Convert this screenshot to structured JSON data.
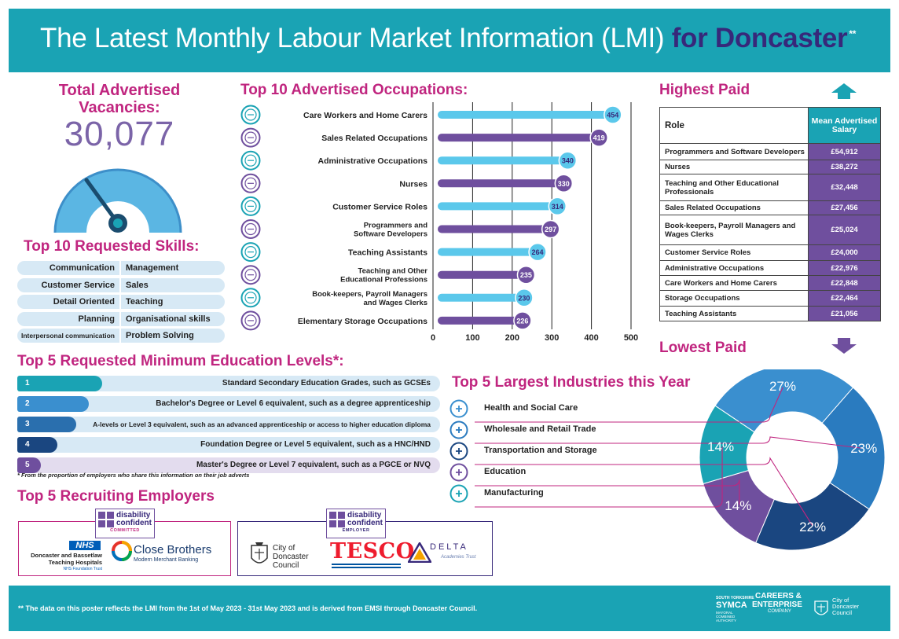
{
  "header": {
    "title_main": "The Latest Monthly Labour Market Information (LMI)",
    "title_highlight": "for Doncaster",
    "title_marker": "**"
  },
  "vacancies": {
    "title": "Total Advertised Vacancies:",
    "value": "30,077",
    "gauge_level": 0.3
  },
  "skills": {
    "title": "Top 10 Requested Skills:",
    "rows": [
      {
        "left": "Communication",
        "right": "Management"
      },
      {
        "left": "Customer Service",
        "right": "Sales"
      },
      {
        "left": "Detail Oriented",
        "right": "Teaching"
      },
      {
        "left": "Planning",
        "right": "Organisational skills"
      },
      {
        "left": "Interpersonal communication",
        "right": "Problem Solving"
      }
    ]
  },
  "occupations": {
    "title": "Top 10 Advertised Occupations:"
  },
  "chart_data": {
    "type": "bar",
    "orientation": "horizontal",
    "title": "Top 10 Advertised Occupations:",
    "categories": [
      "Care Workers and Home Carers",
      "Sales Related Occupations",
      "Administrative Occupations",
      "Nurses",
      "Customer Service Roles",
      "Programmers and|Software Developers",
      "Teaching Assistants",
      "Teaching and Other|Educational Professions",
      "Book-keepers, Payroll Managers|and Wages Clerks",
      "Elementary Storage Occupations"
    ],
    "values": [
      454,
      419,
      340,
      330,
      314,
      297,
      264,
      235,
      230,
      226
    ],
    "xlim": [
      0,
      500
    ],
    "xticks": [
      "0",
      "100",
      "200",
      "300",
      "400",
      "500"
    ],
    "grid": true,
    "icons": [
      "care-icon",
      "chart-icon",
      "envelope-icon",
      "nurse-icon",
      "headset-icon",
      "laptop-icon",
      "teacher-icon",
      "graduation-cap-icon",
      "ledger-icon",
      "warehouse-icon"
    ],
    "colors": [
      "#5bc8eb",
      "#6f4f9e"
    ]
  },
  "highest_paid": {
    "title": "Highest Paid",
    "lowest_title": "Lowest Paid",
    "col_role": "Role",
    "col_salary": "Mean Advertised Salary",
    "rows": [
      {
        "role": "Programmers and Software Developers",
        "salary": "£54,912"
      },
      {
        "role": "Nurses",
        "salary": "£38,272"
      },
      {
        "role": "Teaching and Other Educational Professionals",
        "salary": "£32,448"
      },
      {
        "role": "Sales Related Occupations",
        "salary": "£27,456"
      },
      {
        "role": "Book-keepers, Payroll Managers and Wages Clerks",
        "salary": "£25,024"
      },
      {
        "role": "Customer Service Roles",
        "salary": "£24,000"
      },
      {
        "role": "Administrative Occupations",
        "salary": "£22,976"
      },
      {
        "role": "Care Workers and Home Carers",
        "salary": "£22,848"
      },
      {
        "role": "Storage Occupations",
        "salary": "£22,464"
      },
      {
        "role": "Teaching Assistants",
        "salary": "£21,056"
      }
    ]
  },
  "education": {
    "title": "Top 5 Requested Minimum Education Levels*:",
    "rows": [
      {
        "num": "1",
        "label": "Standard Secondary Education Grades, such as GCSEs",
        "level": 0.2,
        "color": "#1aa3b4"
      },
      {
        "num": "2",
        "label": "Bachelor's Degree or Level 6 equivalent, such as a degree apprenticeship",
        "level": 0.17,
        "color": "#3a8fcf"
      },
      {
        "num": "3",
        "label": "A-levels or Level 3 equivalent, such as an advanced apprenticeship or access to higher education diploma",
        "level": 0.14,
        "color": "#2a6fae"
      },
      {
        "num": "4",
        "label": "Foundation Degree or Level 5 equivalent, such as a HNC/HND",
        "level": 0.095,
        "color": "#1a4680"
      },
      {
        "num": "5",
        "label": "Master's Degree or Level 7 equivalent, such as a PGCE or NVQ",
        "level": 0.055,
        "color": "#6f4f9e"
      }
    ],
    "note": "* From the proportion of employers who share this information on their job adverts"
  },
  "employers": {
    "title": "Top 5 Recruiting Employers",
    "badge_word1": "disability",
    "badge_word2": "confident",
    "badge1_level": "COMMITTED",
    "badge2_level": "EMPLOYER",
    "nhs": "NHS",
    "nhs_line1": "Doncaster and Bassetlaw",
    "nhs_line2": "Teaching Hospitals",
    "nhs_line3": "NHS Foundation Trust",
    "close_brothers": "Close Brothers",
    "close_brothers_sub": "Modern Merchant Banking",
    "council_line1": "City of",
    "council_line2": "Doncaster",
    "council_line3": "Council",
    "tesco": "TESCO",
    "delta": "DELTA",
    "delta_sub": "Academies Trust"
  },
  "industries": {
    "title": "Top 5 Largest Industries this Year",
    "items": [
      {
        "label": "Health and Social Care",
        "percent": 27,
        "color": "#3a8fcf",
        "icon": "plus-icon"
      },
      {
        "label": "Wholesale and Retail Trade",
        "percent": 23,
        "color": "#2a7bbf",
        "icon": "shop-icon"
      },
      {
        "label": "Transportation and Storage",
        "percent": 22,
        "color": "#1a4680",
        "icon": "truck-icon"
      },
      {
        "label": "Education",
        "percent": 14,
        "color": "#6f4f9e",
        "icon": "graduation-cap-icon"
      },
      {
        "label": "Manufacturing",
        "percent": 14,
        "color": "#1aa3b4",
        "icon": "factory-icon"
      }
    ],
    "labels": [
      "27%",
      "23%",
      "22%",
      "14%",
      "14%"
    ]
  },
  "footer": {
    "note": "** The data on this poster reflects the LMI from the 1st of May 2023 - 31st May 2023 and is derived from EMSI through Doncaster Council.",
    "symca_top": "SOUTH YORKSHIRE",
    "symca": "SYMCA",
    "symca_sub": "MAYORAL COMBINED AUTHORITY",
    "careers_line1": "CAREERS &",
    "careers_line2": "ENTERPRISE",
    "careers_line3": "COMPANY",
    "council_line1": "City of",
    "council_line2": "Doncaster",
    "council_line3": "Council"
  }
}
